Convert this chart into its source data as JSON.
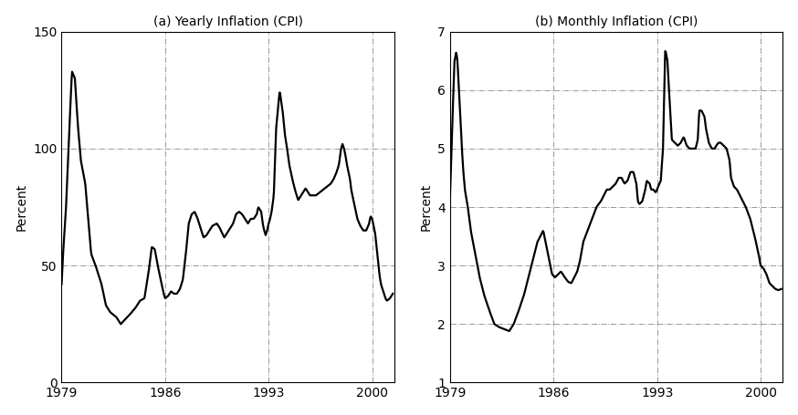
{
  "title_a": "(a) Yearly Inflation (CPI)",
  "title_b": "(b) Monthly Inflation (CPI)",
  "ylabel": "Percent",
  "xlim": [
    1979,
    2001.5
  ],
  "ylim_a": [
    0,
    150
  ],
  "ylim_b": [
    1,
    7
  ],
  "yticks_a": [
    0,
    50,
    100,
    150
  ],
  "yticks_b": [
    1,
    2,
    3,
    4,
    5,
    6,
    7
  ],
  "xticks": [
    1979,
    1986,
    1993,
    2000
  ],
  "line_color": "black",
  "line_width": 1.6,
  "bg_color": "white",
  "fig_color": "white",
  "annual_controls": [
    [
      1979.0,
      42
    ],
    [
      1979.1,
      55
    ],
    [
      1979.3,
      75
    ],
    [
      1979.5,
      105
    ],
    [
      1979.7,
      133
    ],
    [
      1979.9,
      130
    ],
    [
      1980.1,
      110
    ],
    [
      1980.3,
      95
    ],
    [
      1980.6,
      85
    ],
    [
      1981.0,
      55
    ],
    [
      1981.3,
      50
    ],
    [
      1981.7,
      42
    ],
    [
      1982.0,
      33
    ],
    [
      1982.3,
      30
    ],
    [
      1982.7,
      28
    ],
    [
      1983.0,
      25
    ],
    [
      1983.3,
      27
    ],
    [
      1983.6,
      29
    ],
    [
      1984.0,
      32
    ],
    [
      1984.3,
      35
    ],
    [
      1984.6,
      36
    ],
    [
      1984.9,
      48
    ],
    [
      1985.1,
      58
    ],
    [
      1985.3,
      57
    ],
    [
      1985.5,
      50
    ],
    [
      1985.7,
      44
    ],
    [
      1985.9,
      38
    ],
    [
      1986.0,
      36
    ],
    [
      1986.2,
      37
    ],
    [
      1986.4,
      39
    ],
    [
      1986.6,
      38
    ],
    [
      1986.8,
      38
    ],
    [
      1987.0,
      40
    ],
    [
      1987.2,
      44
    ],
    [
      1987.4,
      55
    ],
    [
      1987.6,
      68
    ],
    [
      1987.8,
      72
    ],
    [
      1988.0,
      73
    ],
    [
      1988.2,
      70
    ],
    [
      1988.4,
      66
    ],
    [
      1988.6,
      62
    ],
    [
      1988.8,
      63
    ],
    [
      1989.0,
      65
    ],
    [
      1989.2,
      67
    ],
    [
      1989.5,
      68
    ],
    [
      1989.7,
      66
    ],
    [
      1990.0,
      62
    ],
    [
      1990.2,
      64
    ],
    [
      1990.4,
      66
    ],
    [
      1990.6,
      68
    ],
    [
      1990.8,
      72
    ],
    [
      1991.0,
      73
    ],
    [
      1991.2,
      72
    ],
    [
      1991.4,
      70
    ],
    [
      1991.6,
      68
    ],
    [
      1991.8,
      70
    ],
    [
      1992.0,
      70
    ],
    [
      1992.2,
      72
    ],
    [
      1992.3,
      75
    ],
    [
      1992.5,
      73
    ],
    [
      1992.6,
      68
    ],
    [
      1992.7,
      65
    ],
    [
      1992.8,
      63
    ],
    [
      1992.9,
      65
    ],
    [
      1993.0,
      68
    ],
    [
      1993.1,
      70
    ],
    [
      1993.2,
      73
    ],
    [
      1993.35,
      80
    ],
    [
      1993.5,
      108
    ],
    [
      1993.65,
      118
    ],
    [
      1993.75,
      125
    ],
    [
      1993.85,
      120
    ],
    [
      1993.95,
      116
    ],
    [
      1994.1,
      106
    ],
    [
      1994.25,
      100
    ],
    [
      1994.4,
      93
    ],
    [
      1994.6,
      87
    ],
    [
      1994.8,
      82
    ],
    [
      1995.0,
      78
    ],
    [
      1995.2,
      80
    ],
    [
      1995.4,
      82
    ],
    [
      1995.5,
      83
    ],
    [
      1995.6,
      82
    ],
    [
      1995.8,
      80
    ],
    [
      1996.0,
      80
    ],
    [
      1996.2,
      80
    ],
    [
      1996.4,
      81
    ],
    [
      1996.6,
      82
    ],
    [
      1996.8,
      83
    ],
    [
      1997.0,
      84
    ],
    [
      1997.2,
      85
    ],
    [
      1997.4,
      87
    ],
    [
      1997.6,
      90
    ],
    [
      1997.75,
      93
    ],
    [
      1997.9,
      100
    ],
    [
      1998.0,
      102
    ],
    [
      1998.1,
      100
    ],
    [
      1998.2,
      97
    ],
    [
      1998.3,
      93
    ],
    [
      1998.5,
      87
    ],
    [
      1998.6,
      82
    ],
    [
      1998.8,
      76
    ],
    [
      1999.0,
      70
    ],
    [
      1999.2,
      67
    ],
    [
      1999.4,
      65
    ],
    [
      1999.6,
      65
    ],
    [
      1999.8,
      68
    ],
    [
      1999.85,
      70
    ],
    [
      1999.9,
      71
    ],
    [
      2000.0,
      70
    ],
    [
      2000.1,
      67
    ],
    [
      2000.2,
      64
    ],
    [
      2000.3,
      58
    ],
    [
      2000.4,
      52
    ],
    [
      2000.5,
      46
    ],
    [
      2000.6,
      42
    ],
    [
      2000.7,
      40
    ],
    [
      2000.8,
      38
    ],
    [
      2000.9,
      36
    ],
    [
      2001.0,
      35
    ],
    [
      2001.2,
      36
    ],
    [
      2001.4,
      38
    ]
  ],
  "monthly_controls": [
    [
      1979.0,
      4.2
    ],
    [
      1979.1,
      5.0
    ],
    [
      1979.2,
      5.8
    ],
    [
      1979.3,
      6.5
    ],
    [
      1979.42,
      6.65
    ],
    [
      1979.5,
      6.5
    ],
    [
      1979.6,
      6.0
    ],
    [
      1979.7,
      5.5
    ],
    [
      1979.8,
      5.0
    ],
    [
      1979.9,
      4.6
    ],
    [
      1980.0,
      4.3
    ],
    [
      1980.2,
      4.0
    ],
    [
      1980.4,
      3.6
    ],
    [
      1980.7,
      3.2
    ],
    [
      1981.0,
      2.8
    ],
    [
      1981.3,
      2.5
    ],
    [
      1981.7,
      2.2
    ],
    [
      1982.0,
      2.0
    ],
    [
      1982.3,
      1.95
    ],
    [
      1982.6,
      1.92
    ],
    [
      1983.0,
      1.88
    ],
    [
      1983.3,
      2.0
    ],
    [
      1983.6,
      2.2
    ],
    [
      1984.0,
      2.5
    ],
    [
      1984.3,
      2.8
    ],
    [
      1984.5,
      3.0
    ],
    [
      1984.7,
      3.2
    ],
    [
      1984.9,
      3.4
    ],
    [
      1985.1,
      3.5
    ],
    [
      1985.3,
      3.6
    ],
    [
      1985.5,
      3.35
    ],
    [
      1985.7,
      3.1
    ],
    [
      1985.9,
      2.85
    ],
    [
      1986.1,
      2.8
    ],
    [
      1986.3,
      2.85
    ],
    [
      1986.5,
      2.9
    ],
    [
      1986.7,
      2.82
    ],
    [
      1986.9,
      2.75
    ],
    [
      1987.0,
      2.72
    ],
    [
      1987.2,
      2.7
    ],
    [
      1987.4,
      2.8
    ],
    [
      1987.6,
      2.9
    ],
    [
      1987.8,
      3.1
    ],
    [
      1988.0,
      3.4
    ],
    [
      1988.3,
      3.6
    ],
    [
      1988.6,
      3.8
    ],
    [
      1988.9,
      4.0
    ],
    [
      1989.2,
      4.1
    ],
    [
      1989.4,
      4.2
    ],
    [
      1989.6,
      4.3
    ],
    [
      1989.8,
      4.3
    ],
    [
      1990.0,
      4.35
    ],
    [
      1990.2,
      4.4
    ],
    [
      1990.4,
      4.5
    ],
    [
      1990.6,
      4.5
    ],
    [
      1990.8,
      4.4
    ],
    [
      1991.0,
      4.45
    ],
    [
      1991.2,
      4.6
    ],
    [
      1991.4,
      4.6
    ],
    [
      1991.6,
      4.4
    ],
    [
      1991.7,
      4.1
    ],
    [
      1991.8,
      4.05
    ],
    [
      1992.0,
      4.1
    ],
    [
      1992.2,
      4.3
    ],
    [
      1992.3,
      4.45
    ],
    [
      1992.5,
      4.4
    ],
    [
      1992.6,
      4.3
    ],
    [
      1992.75,
      4.3
    ],
    [
      1992.9,
      4.25
    ],
    [
      1993.0,
      4.3
    ],
    [
      1993.15,
      4.4
    ],
    [
      1993.25,
      4.45
    ],
    [
      1993.4,
      5.0
    ],
    [
      1993.55,
      6.7
    ],
    [
      1993.7,
      6.5
    ],
    [
      1993.85,
      5.8
    ],
    [
      1994.0,
      5.15
    ],
    [
      1994.2,
      5.1
    ],
    [
      1994.4,
      5.05
    ],
    [
      1994.6,
      5.1
    ],
    [
      1994.8,
      5.2
    ],
    [
      1995.0,
      5.05
    ],
    [
      1995.2,
      5.0
    ],
    [
      1995.4,
      5.0
    ],
    [
      1995.6,
      5.0
    ],
    [
      1995.75,
      5.15
    ],
    [
      1995.85,
      5.65
    ],
    [
      1996.0,
      5.65
    ],
    [
      1996.1,
      5.6
    ],
    [
      1996.2,
      5.55
    ],
    [
      1996.3,
      5.35
    ],
    [
      1996.5,
      5.1
    ],
    [
      1996.7,
      5.0
    ],
    [
      1996.9,
      5.0
    ],
    [
      1997.0,
      5.05
    ],
    [
      1997.15,
      5.1
    ],
    [
      1997.3,
      5.1
    ],
    [
      1997.5,
      5.05
    ],
    [
      1997.7,
      5.0
    ],
    [
      1997.9,
      4.8
    ],
    [
      1998.0,
      4.5
    ],
    [
      1998.2,
      4.35
    ],
    [
      1998.4,
      4.3
    ],
    [
      1998.6,
      4.2
    ],
    [
      1998.8,
      4.1
    ],
    [
      1999.0,
      4.0
    ],
    [
      1999.3,
      3.8
    ],
    [
      1999.6,
      3.5
    ],
    [
      1999.9,
      3.15
    ],
    [
      2000.0,
      3.0
    ],
    [
      2000.2,
      2.95
    ],
    [
      2000.4,
      2.85
    ],
    [
      2000.6,
      2.7
    ],
    [
      2000.8,
      2.65
    ],
    [
      2001.0,
      2.6
    ],
    [
      2001.2,
      2.58
    ],
    [
      2001.4,
      2.6
    ]
  ]
}
